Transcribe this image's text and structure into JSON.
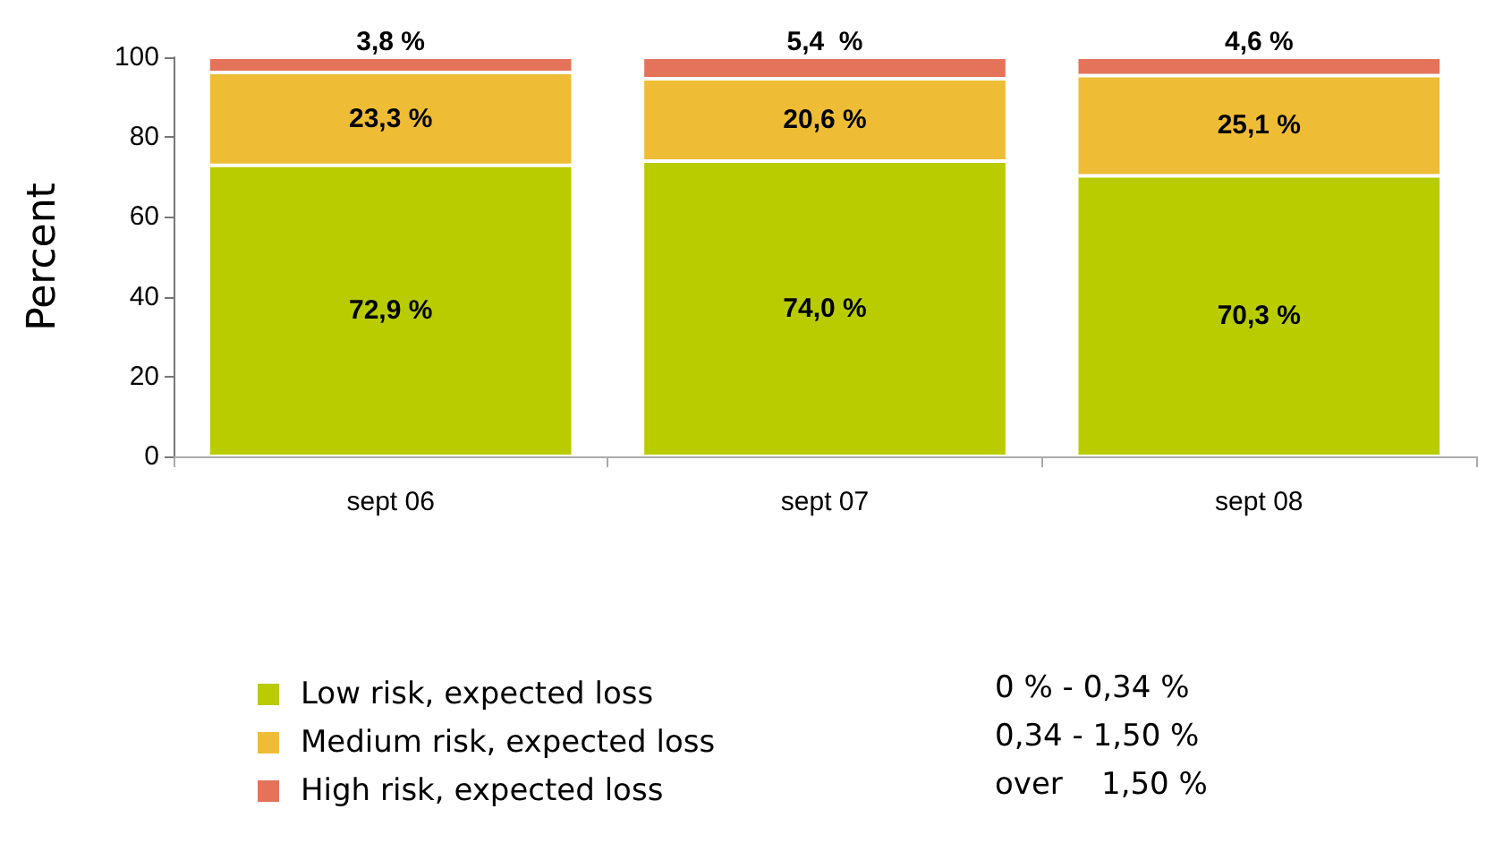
{
  "chart_data": {
    "type": "bar",
    "stacked": true,
    "ylabel": "Percent",
    "categories": [
      "sept 06",
      "sept 07",
      "sept 08"
    ],
    "series": [
      {
        "name": "Low risk, expected loss",
        "color": "#b8cc00",
        "values": [
          72.9,
          74.0,
          70.3
        ],
        "value_labels": [
          "72,9 %",
          "74,0 %",
          "70,3 %"
        ]
      },
      {
        "name": "Medium risk, expected loss",
        "color": "#eebd35",
        "values": [
          23.3,
          20.6,
          25.1
        ],
        "value_labels": [
          "23,3 %",
          "20,6 %",
          "25,1 %"
        ]
      },
      {
        "name": "High risk, expected loss",
        "color": "#e4735a",
        "values": [
          3.8,
          5.4,
          4.6
        ],
        "value_labels": [
          "3,8 %",
          "5,4  %",
          "4,6 %"
        ]
      }
    ],
    "ylim": [
      0,
      100
    ],
    "yticks": [
      0,
      20,
      40,
      60,
      80,
      100
    ],
    "grid": false,
    "legend": "bottom left",
    "annotations": [
      "0 % - 0,34 %",
      "0,34 - 1,50 %",
      "over    1,50 %"
    ]
  }
}
